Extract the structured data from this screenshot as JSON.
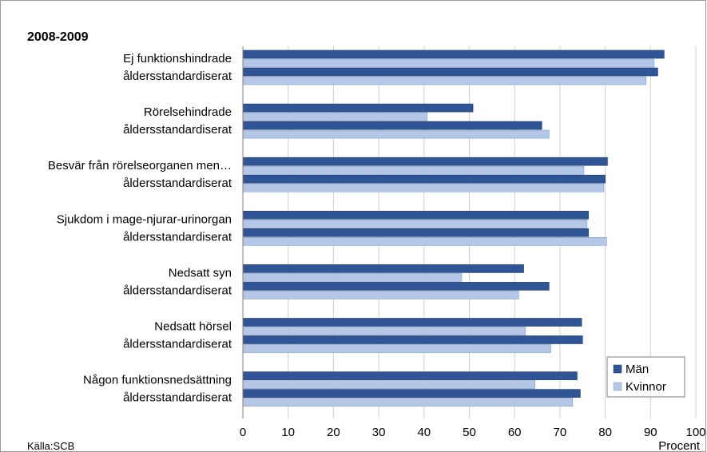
{
  "chart_data": {
    "type": "bar",
    "orientation": "horizontal",
    "title": "2008-2009",
    "xlabel": "Procent",
    "source": "Källa:SCB",
    "xlim": [
      0,
      100
    ],
    "xticks": [
      0,
      10,
      20,
      30,
      40,
      50,
      60,
      70,
      80,
      90,
      100
    ],
    "grid": true,
    "legend_position": "bottom-right",
    "categories": [
      {
        "line1": "Ej funktionshindrade",
        "line2": "åldersstandardiserat"
      },
      {
        "line1": "Rörelsehindrade",
        "line2": "åldersstandardiserat"
      },
      {
        "line1": "Besvär från rörelseorganen men…",
        "line2": "åldersstandardiserat"
      },
      {
        "line1": "Sjukdom i mage-njurar-urinorgan",
        "line2": "åldersstandardiserat"
      },
      {
        "line1": "Nedsatt syn",
        "line2": "åldersstandardiserat"
      },
      {
        "line1": "Nedsatt hörsel",
        "line2": "åldersstandardiserat"
      },
      {
        "line1": "Någon funktionsnedsättning",
        "line2": "åldersstandardiserat"
      }
    ],
    "series": [
      {
        "name": "Män",
        "color": "#2f5597",
        "values": [
          93.0,
          50.8,
          80.5,
          76.3,
          62.0,
          74.8,
          73.8
        ],
        "values_standardized": [
          91.6,
          66.0,
          80.0,
          76.3,
          67.6,
          75.0,
          74.5
        ]
      },
      {
        "name": "Kvinnor",
        "color": "#b4c7e7",
        "values": [
          90.8,
          40.7,
          75.3,
          76.0,
          48.3,
          62.4,
          64.5
        ],
        "values_standardized": [
          89.0,
          67.6,
          79.7,
          80.3,
          60.9,
          68.0,
          72.8
        ]
      }
    ]
  }
}
